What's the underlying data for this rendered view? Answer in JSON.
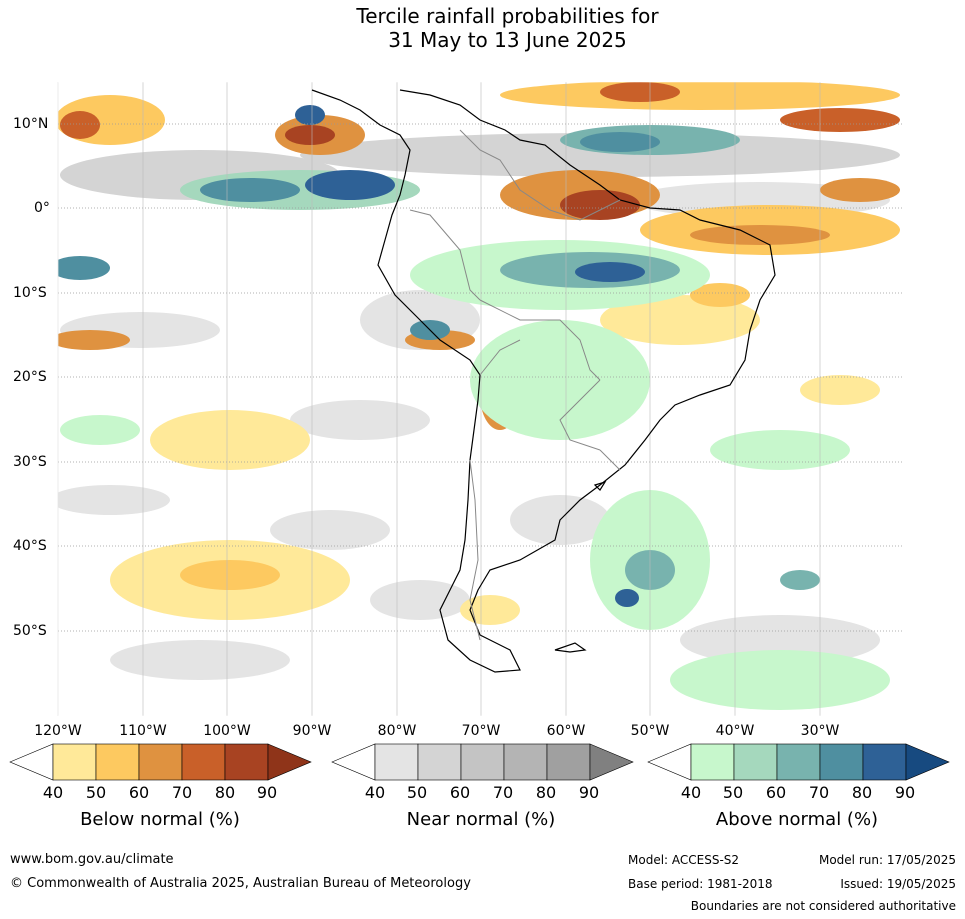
{
  "title": {
    "line1": "Tercile rainfall probabilities for",
    "line2": "31 May to 13 June 2025"
  },
  "map": {
    "lon_ticks": [
      "120°W",
      "110°W",
      "100°W",
      "90°W",
      "80°W",
      "70°W",
      "60°W",
      "50°W",
      "40°W",
      "30°W"
    ],
    "lat_ticks": [
      "10°N",
      "0°",
      "10°S",
      "20°S",
      "30°S",
      "40°S",
      "50°S"
    ],
    "colors": {
      "below": [
        "#ffffff",
        "#ffe999",
        "#fdc960",
        "#df9240",
        "#c96029",
        "#a84322",
        "#8f3419"
      ],
      "near": [
        "#ffffff",
        "#e4e4e4",
        "#d4d4d4",
        "#c4c4c4",
        "#b4b4b4",
        "#a0a0a0",
        "#808080"
      ],
      "above": [
        "#ffffff",
        "#c7f7cc",
        "#a5d8bd",
        "#78b3ae",
        "#4f8fa0",
        "#2e6196",
        "#174a80"
      ]
    }
  },
  "colorbars": {
    "below": {
      "label": "Below normal (%)",
      "ticks": [
        "40",
        "50",
        "60",
        "70",
        "80",
        "90"
      ]
    },
    "near": {
      "label": "Near normal (%)",
      "ticks": [
        "40",
        "50",
        "60",
        "70",
        "80",
        "90"
      ]
    },
    "above": {
      "label": "Above normal (%)",
      "ticks": [
        "40",
        "50",
        "60",
        "70",
        "80",
        "90"
      ]
    }
  },
  "footer": {
    "website": "www.bom.gov.au/climate",
    "copyright": "© Commonwealth of Australia 2025, Australian Bureau of Meteorology",
    "model": "Model: ACCESS-S2",
    "base_period": "Base period: 1981-2018",
    "model_run": "Model run: 17/05/2025",
    "issued": "Issued: 19/05/2025",
    "disclaimer": "Boundaries are not considered authoritative"
  }
}
